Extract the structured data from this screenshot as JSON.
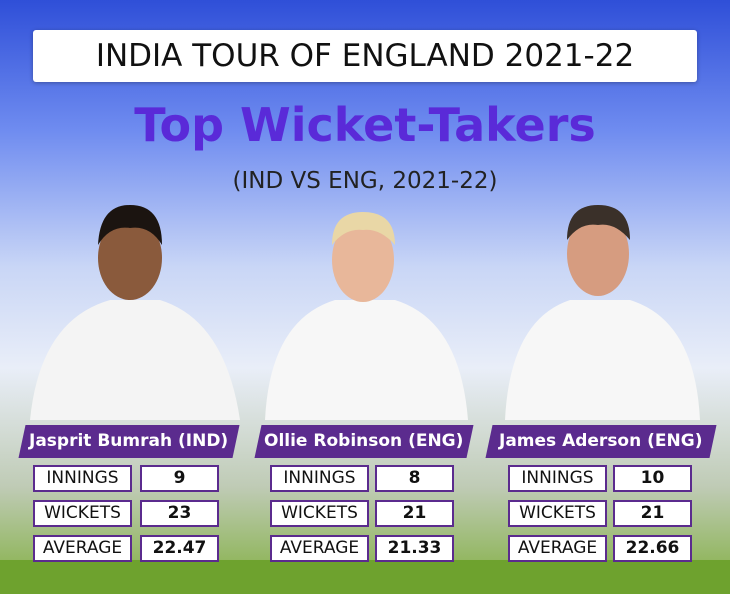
{
  "header": {
    "title": "INDIA TOUR OF ENGLAND 2021-22"
  },
  "heading": "Top Wicket-Takers",
  "subheading": "(IND VS ENG, 2021-22)",
  "players": [
    {
      "name": "Jasprit Bumrah (IND)",
      "stats": [
        {
          "label": "INNINGS",
          "value": 9
        },
        {
          "label": "WICKETS",
          "value": 23
        },
        {
          "label": "AVERAGE",
          "value": 22.47
        }
      ]
    },
    {
      "name": "Ollie Robinson (ENG)",
      "stats": [
        {
          "label": "INNINGS",
          "value": 8
        },
        {
          "label": "WICKETS",
          "value": 21
        },
        {
          "label": "AVERAGE",
          "value": 21.33
        }
      ]
    },
    {
      "name": "James Aderson (ENG)",
      "stats": [
        {
          "label": "INNINGS",
          "value": 10
        },
        {
          "label": "WICKETS",
          "value": 21
        },
        {
          "label": "AVERAGE",
          "value": 22.66
        }
      ]
    }
  ]
}
